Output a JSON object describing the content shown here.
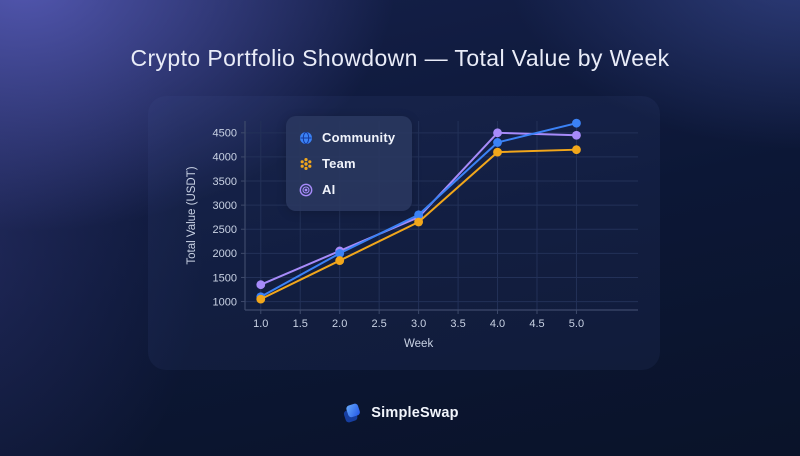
{
  "page": {
    "title": "Crypto Portfolio Showdown — Total Value by Week"
  },
  "chart_data": {
    "type": "line",
    "title": "Crypto Portfolio Showdown — Total Value by Week",
    "xlabel": "Week",
    "ylabel": "Total Value (USDT)",
    "x": [
      1,
      2,
      3,
      4,
      5
    ],
    "series": [
      {
        "name": "Community",
        "color": "#3b82f6",
        "icon": "community-globe-icon",
        "values": [
          1100,
          2000,
          2800,
          4300,
          4700
        ]
      },
      {
        "name": "Team",
        "color": "#f2a71b",
        "icon": "team-dots-icon",
        "values": [
          1050,
          1850,
          2650,
          4100,
          4150
        ]
      },
      {
        "name": "AI",
        "color": "#a78bfa",
        "icon": "ai-ring-icon",
        "values": [
          1350,
          2050,
          2750,
          4500,
          4450
        ]
      }
    ],
    "draw_order": [
      "AI",
      "Community",
      "Team"
    ],
    "x_ticks": [
      1.0,
      1.5,
      2.0,
      2.5,
      3.0,
      3.5,
      4.0,
      4.5,
      5.0
    ],
    "y_ticks": [
      1000,
      1500,
      2000,
      2500,
      3000,
      3500,
      4000,
      4500
    ],
    "xlim": [
      0.8,
      5.78
    ],
    "ylim": [
      825,
      4745
    ],
    "grid": true,
    "legend_position": "upper-left"
  },
  "footer": {
    "brand": "SimpleSwap"
  },
  "colors": {
    "background_navy": "#0a1530",
    "glow_indigo": "#5a5fc0",
    "grid_line": "#233158",
    "axis_line": "#3e4a6b",
    "tick_text": "#c9d2e4",
    "title_text": "#e9ecf8",
    "community_blue": "#3b82f6",
    "team_orange": "#f2a71b",
    "ai_purple": "#a78bfa"
  }
}
